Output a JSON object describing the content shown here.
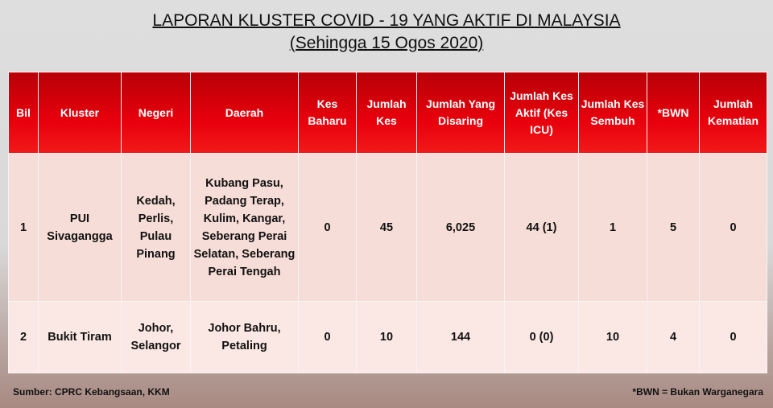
{
  "title": "LAPORAN KLUSTER COVID - 19 YANG AKTIF DI MALAYSIA",
  "subtitle": "(Sehingga 15 Ogos 2020)",
  "headers": [
    "Bil",
    "Kluster",
    "Negeri",
    "Daerah",
    "Kes Baharu",
    "Jumlah Kes",
    "Jumlah Yang Disaring",
    "Jumlah Kes Aktif (Kes ICU)",
    "Jumlah Kes Sembuh",
    "*BWN",
    "Jumlah Kematian"
  ],
  "rows": [
    [
      "1",
      "PUI Sivagangga",
      "Kedah, Perlis, Pulau Pinang",
      "Kubang Pasu, Padang Terap, Kulim, Kangar, Seberang Perai Selatan, Seberang Perai Tengah",
      "0",
      "45",
      "6,025",
      "44 (1)",
      "1",
      "5",
      "0"
    ],
    [
      "2",
      "Bukit Tiram",
      "Johor, Selangor",
      "Johor Bahru, Petaling",
      "0",
      "10",
      "144",
      "0 (0)",
      "10",
      "4",
      "0"
    ]
  ],
  "source": "Sumber: CPRC Kebangsaan, KKM",
  "note": "*BWN = Bukan Warganegara",
  "colors": {
    "header_red": "#e8000c",
    "row_bg": "#f7ddd7"
  }
}
